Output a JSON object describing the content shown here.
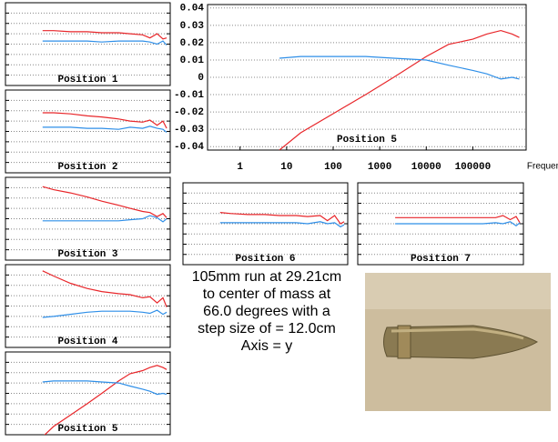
{
  "chart_data": [
    {
      "type": "line",
      "title": "Position 1",
      "xscale": "log",
      "xlim": [
        0.2,
        1400000
      ],
      "ylim": [
        -0.04,
        0.04
      ],
      "grid": true,
      "x": [
        7,
        20,
        100,
        500,
        2000,
        10000,
        30000,
        100000,
        200000,
        400000,
        700000,
        1000000
      ],
      "series": [
        {
          "name": "red",
          "color": "#e8262a",
          "values": [
            0.013,
            0.013,
            0.012,
            0.012,
            0.011,
            0.011,
            0.01,
            0.009,
            0.006,
            0.01,
            0.005,
            0.006
          ]
        },
        {
          "name": "blue",
          "color": "#2f8fe8",
          "values": [
            0.003,
            0.003,
            0.003,
            0.003,
            0.002,
            0.003,
            0.003,
            0.003,
            0.002,
            0.0,
            0.003,
            -0.001
          ]
        }
      ]
    },
    {
      "type": "line",
      "title": "Position 2",
      "xscale": "log",
      "xlim": [
        0.2,
        1400000
      ],
      "ylim": [
        -0.04,
        0.04
      ],
      "grid": true,
      "x": [
        7,
        20,
        100,
        500,
        2000,
        10000,
        30000,
        100000,
        200000,
        400000,
        700000,
        1000000
      ],
      "series": [
        {
          "name": "red",
          "color": "#e8262a",
          "values": [
            0.018,
            0.018,
            0.017,
            0.015,
            0.014,
            0.012,
            0.01,
            0.009,
            0.011,
            0.006,
            0.01,
            0.003
          ]
        },
        {
          "name": "blue",
          "color": "#2f8fe8",
          "values": [
            0.004,
            0.004,
            0.004,
            0.003,
            0.003,
            0.002,
            0.004,
            0.003,
            0.005,
            0.003,
            0.002,
            -0.001
          ]
        }
      ]
    },
    {
      "type": "line",
      "title": "Position 3",
      "xscale": "log",
      "xlim": [
        0.2,
        1400000
      ],
      "ylim": [
        -0.04,
        0.04
      ],
      "grid": true,
      "x": [
        7,
        20,
        100,
        500,
        2000,
        10000,
        30000,
        100000,
        200000,
        400000,
        700000,
        1000000
      ],
      "series": [
        {
          "name": "red",
          "color": "#e8262a",
          "values": [
            0.031,
            0.028,
            0.025,
            0.021,
            0.017,
            0.013,
            0.01,
            0.007,
            0.006,
            0.002,
            0.005,
            0.001
          ]
        },
        {
          "name": "blue",
          "color": "#2f8fe8",
          "values": [
            -0.002,
            -0.002,
            -0.002,
            -0.002,
            -0.002,
            -0.002,
            -0.001,
            0.0,
            0.003,
            0.001,
            -0.003,
            0.0
          ]
        }
      ]
    },
    {
      "type": "line",
      "title": "Position 4",
      "xscale": "log",
      "xlim": [
        0.2,
        1400000
      ],
      "ylim": [
        -0.04,
        0.04
      ],
      "grid": true,
      "x": [
        7,
        20,
        100,
        500,
        2000,
        10000,
        30000,
        100000,
        200000,
        400000,
        700000,
        1000000
      ],
      "series": [
        {
          "name": "red",
          "color": "#e8262a",
          "values": [
            0.034,
            0.029,
            0.022,
            0.017,
            0.014,
            0.012,
            0.011,
            0.008,
            0.009,
            0.003,
            0.008,
            -0.001
          ]
        },
        {
          "name": "blue",
          "color": "#2f8fe8",
          "values": [
            -0.011,
            -0.01,
            -0.008,
            -0.006,
            -0.005,
            -0.005,
            -0.005,
            -0.006,
            -0.007,
            -0.004,
            -0.008,
            -0.006
          ]
        }
      ]
    },
    {
      "type": "line",
      "title": "Position 5",
      "xscale": "log",
      "xlim": [
        0.2,
        1400000
      ],
      "ylim": [
        -0.04,
        0.04
      ],
      "grid": true,
      "x": [
        7,
        20,
        100,
        500,
        2000,
        10000,
        30000,
        100000,
        200000,
        400000,
        700000,
        1000000
      ],
      "series": [
        {
          "name": "red",
          "color": "#e8262a",
          "values": [
            -0.042,
            -0.032,
            -0.021,
            -0.01,
            0.0,
            0.012,
            0.019,
            0.022,
            0.025,
            0.027,
            0.025,
            0.023
          ]
        },
        {
          "name": "blue",
          "color": "#2f8fe8",
          "values": [
            0.011,
            0.012,
            0.012,
            0.012,
            0.011,
            0.01,
            0.007,
            0.004,
            0.002,
            -0.001,
            0.0,
            -0.001
          ]
        }
      ]
    },
    {
      "type": "line",
      "title": "Position 5",
      "xlabel": "Frequency(Hz)",
      "xscale": "log",
      "xlim": [
        0.2,
        1400000
      ],
      "ylim": [
        -0.042,
        0.042
      ],
      "grid": true,
      "xticks": [
        1,
        10,
        100,
        1000,
        10000,
        100000
      ],
      "yticks": [
        0.04,
        0.03,
        0.02,
        0.01,
        0,
        -0.01,
        -0.02,
        -0.03,
        -0.04
      ],
      "x": [
        7,
        20,
        100,
        500,
        2000,
        10000,
        30000,
        100000,
        200000,
        400000,
        700000,
        1000000
      ],
      "series": [
        {
          "name": "red",
          "color": "#e8262a",
          "values": [
            -0.042,
            -0.032,
            -0.021,
            -0.01,
            0.0,
            0.012,
            0.019,
            0.022,
            0.025,
            0.027,
            0.025,
            0.023
          ]
        },
        {
          "name": "blue",
          "color": "#2f8fe8",
          "values": [
            0.011,
            0.012,
            0.012,
            0.012,
            0.011,
            0.01,
            0.007,
            0.004,
            0.002,
            -0.001,
            0.0,
            -0.001
          ]
        }
      ]
    },
    {
      "type": "line",
      "title": "Position 6",
      "xscale": "log",
      "xlim": [
        0.2,
        1400000
      ],
      "ylim": [
        -0.04,
        0.04
      ],
      "grid": true,
      "x": [
        7,
        20,
        100,
        500,
        2000,
        10000,
        30000,
        100000,
        200000,
        400000,
        700000,
        1000000
      ],
      "series": [
        {
          "name": "red",
          "color": "#e8262a",
          "values": [
            0.011,
            0.01,
            0.009,
            0.009,
            0.008,
            0.008,
            0.007,
            0.008,
            0.003,
            0.008,
            0.0,
            0.002
          ]
        },
        {
          "name": "blue",
          "color": "#2f8fe8",
          "values": [
            0.001,
            0.001,
            0.001,
            0.001,
            0.001,
            0.001,
            0.0,
            0.002,
            0.0,
            0.001,
            -0.003,
            -0.001
          ]
        }
      ]
    },
    {
      "type": "line",
      "title": "Position 7",
      "xscale": "log",
      "xlim": [
        0.2,
        1400000
      ],
      "ylim": [
        -0.04,
        0.04
      ],
      "grid": true,
      "x": [
        7,
        20,
        100,
        500,
        2000,
        10000,
        30000,
        100000,
        200000,
        400000,
        700000,
        1000000
      ],
      "series": [
        {
          "name": "red",
          "color": "#e8262a",
          "values": [
            0.006,
            0.006,
            0.006,
            0.006,
            0.006,
            0.006,
            0.006,
            0.006,
            0.008,
            0.004,
            0.007,
            0.001
          ]
        },
        {
          "name": "blue",
          "color": "#2f8fe8",
          "values": [
            0.0,
            0.0,
            0.0,
            0.0,
            0.0,
            0.0,
            0.0,
            0.001,
            0.0,
            0.002,
            -0.002,
            0.001
          ]
        }
      ]
    }
  ],
  "note": {
    "lines": [
      "105mm run at 29.21cm",
      "to center of mass at",
      "66.0 degrees with a",
      "step size of = 12.0cm",
      "Axis = y"
    ]
  }
}
